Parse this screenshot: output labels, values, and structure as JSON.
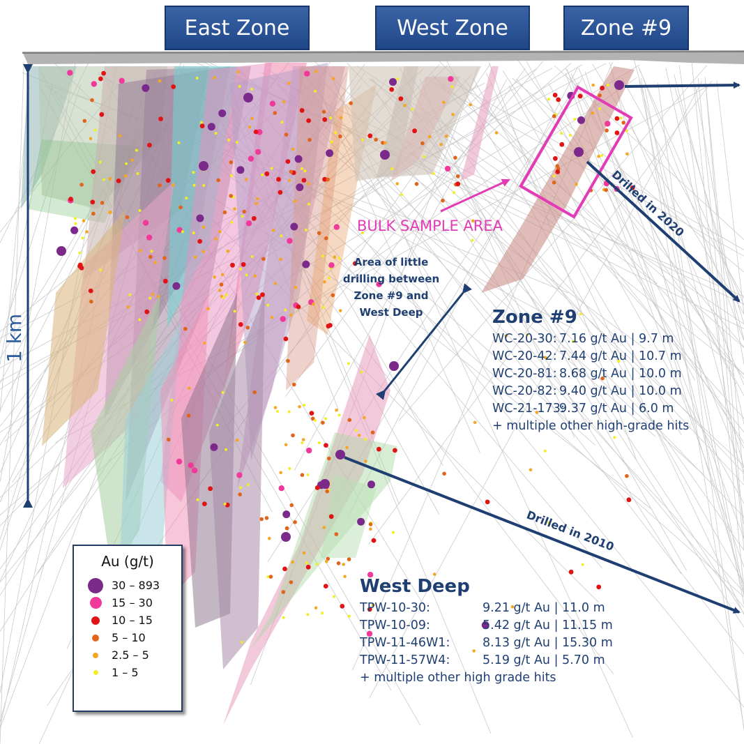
{
  "zones": [
    {
      "label": "East Zone"
    },
    {
      "label": "West Zone"
    },
    {
      "label": "Zone #9"
    }
  ],
  "annotations": {
    "bulk_sample": "BULK SAMPLE AREA",
    "little_drilling": [
      "Area of little",
      "drilling between",
      "Zone #9 and",
      "West Deep"
    ],
    "drilled_2020": "Drilled in 2020",
    "drilled_2010": "Drilled in 2010",
    "scale": "1 km"
  },
  "zone9": {
    "title": "Zone #9",
    "hits": [
      {
        "hole": "WC-20-30:",
        "result": "7.16 g/t Au | 9.7 m"
      },
      {
        "hole": "WC-20-42:",
        "result": "7.44 g/t Au | 10.7 m"
      },
      {
        "hole": "WC-20-81:",
        "result": "8.68 g/t Au | 10.0 m"
      },
      {
        "hole": "WC-20-82:",
        "result": "9.40 g/t Au | 10.0 m"
      },
      {
        "hole": "WC-21-173:",
        "result": "9.37 g/t Au | 6.0 m"
      }
    ],
    "note": "+ multiple other high-grade hits"
  },
  "west_deep": {
    "title": "West Deep",
    "hits": [
      {
        "hole": "TPW-10-30:",
        "result": "9.21 g/t Au | 11.0 m"
      },
      {
        "hole": "TPW-10-09:",
        "result": "5.42 g/t Au | 11.15 m"
      },
      {
        "hole": "TPW-11-46W1:",
        "result": "8.13 g/t Au | 15.30 m"
      },
      {
        "hole": "TPW-11-57W4:",
        "result": "5.19 g/t Au | 5.70 m"
      }
    ],
    "note": "+ multiple other high grade hits"
  },
  "legend": {
    "title": "Au (g/t)",
    "items": [
      {
        "label": "30 – 893",
        "color": "#7b2a8c"
      },
      {
        "label": "15 – 30",
        "color": "#f0399a"
      },
      {
        "label": "10 – 15",
        "color": "#e01414"
      },
      {
        "label": "5 – 10",
        "color": "#e0651a"
      },
      {
        "label": "2.5 – 5",
        "color": "#f5a623"
      },
      {
        "label": "1 – 5",
        "color": "#f2ee22"
      }
    ]
  },
  "colors": {
    "navy": "#1f3f72",
    "magenta": "#e33bb6",
    "tab_blue": "#2b559a"
  }
}
